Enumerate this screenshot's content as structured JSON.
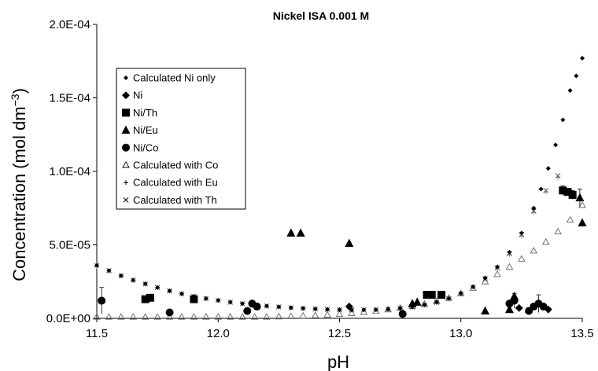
{
  "chart_data": {
    "type": "scatter",
    "title": "Nickel ISA 0.001 M",
    "xlabel": "pH",
    "ylabel": "Concentration (mol dm",
    "ylabel_sup": "−3",
    "ylabel_close": ")",
    "xlim": [
      11.5,
      13.5
    ],
    "ylim": [
      0,
      0.0002
    ],
    "x_ticks": [
      11.5,
      12.0,
      12.5,
      13.0,
      13.5
    ],
    "x_tick_labels": [
      "11.5",
      "12.0",
      "12.5",
      "13.0",
      "13.5"
    ],
    "y_ticks": [
      0,
      5e-05,
      0.0001,
      0.00015,
      0.0002
    ],
    "y_tick_labels": [
      "0.0E+00",
      "5.0E-05",
      "1.0E-04",
      "1.5E-04",
      "2.0E-04"
    ],
    "grid": false,
    "legend_position": "upper-left",
    "series": [
      {
        "name": "Calculated Ni only",
        "marker": "small-diamond",
        "color": "#000000",
        "x": [
          11.5,
          11.55,
          11.6,
          11.65,
          11.7,
          11.75,
          11.8,
          11.85,
          11.9,
          11.95,
          12.0,
          12.05,
          12.1,
          12.15,
          12.2,
          12.25,
          12.3,
          12.35,
          12.4,
          12.45,
          12.5,
          12.55,
          12.6,
          12.65,
          12.7,
          12.75,
          12.8,
          12.85,
          12.9,
          12.95,
          13.0,
          13.05,
          13.1,
          13.15,
          13.2,
          13.25,
          13.3,
          13.33,
          13.36,
          13.39,
          13.42,
          13.45,
          13.475,
          13.5
        ],
        "y": [
          3.6e-05,
          3.25e-05,
          2.9e-05,
          2.6e-05,
          2.35e-05,
          2.1e-05,
          1.87e-05,
          1.67e-05,
          1.5e-05,
          1.35e-05,
          1.22e-05,
          1.1e-05,
          1e-05,
          9.2e-06,
          8.4e-06,
          7.8e-06,
          7.2e-06,
          6.8e-06,
          6.4e-06,
          6.1e-06,
          5.9e-06,
          5.8e-06,
          5.8e-06,
          5.9e-06,
          6.2e-06,
          6.8e-06,
          7.8e-06,
          9.2e-06,
          1.1e-05,
          1.35e-05,
          1.7e-05,
          2.15e-05,
          2.75e-05,
          3.5e-05,
          4.5e-05,
          5.8e-05,
          7.5e-05,
          8.8e-05,
          0.000102,
          0.000118,
          0.000135,
          0.000155,
          0.000165,
          0.000177
        ]
      },
      {
        "name": "Ni",
        "marker": "diamond",
        "color": "#000000",
        "x": [
          12.54,
          13.24,
          13.36
        ],
        "y": [
          8e-06,
          7e-06,
          6e-06
        ]
      },
      {
        "name": "Ni/Th",
        "marker": "square",
        "color": "#000000",
        "x": [
          11.7,
          11.72,
          11.9,
          12.86,
          12.88,
          12.92,
          13.42,
          13.44,
          13.46
        ],
        "y": [
          1.3e-05,
          1.4e-05,
          1.3e-05,
          1.6e-05,
          1.6e-05,
          1.6e-05,
          8.7e-05,
          8.6e-05,
          8.4e-05
        ],
        "error_y": [
          0,
          0,
          0,
          0,
          0,
          0,
          3e-06,
          0,
          3e-06
        ]
      },
      {
        "name": "Ni/Eu",
        "marker": "triangle",
        "color": "#000000",
        "x": [
          12.3,
          12.34,
          12.54,
          12.8,
          12.82,
          13.1,
          13.2,
          13.22,
          13.49,
          13.5
        ],
        "y": [
          5.8e-05,
          5.8e-05,
          5.1e-05,
          1e-05,
          1.1e-05,
          5e-06,
          6e-06,
          1.5e-05,
          8.2e-05,
          6.5e-05
        ],
        "error_y": [
          0,
          0,
          0,
          0,
          0,
          0,
          0,
          0,
          6e-06,
          0
        ]
      },
      {
        "name": "Ni/Co",
        "marker": "circle",
        "color": "#000000",
        "x": [
          11.52,
          11.8,
          12.12,
          12.14,
          12.16,
          12.76,
          13.2,
          13.22,
          13.28,
          13.3,
          13.32,
          13.34
        ],
        "y": [
          1.2e-05,
          4e-06,
          5e-06,
          1e-05,
          8e-06,
          3e-06,
          1e-05,
          1.2e-05,
          5e-06,
          8e-06,
          1e-05,
          8e-06
        ],
        "error_y": [
          9e-06,
          0,
          0,
          0,
          0,
          0,
          0,
          5e-06,
          0,
          0,
          6e-06,
          0
        ]
      },
      {
        "name": "Calculated with Co",
        "marker": "open-triangle",
        "color": "#666666",
        "x": [
          11.5,
          11.55,
          11.6,
          11.65,
          11.7,
          11.75,
          11.8,
          11.85,
          11.9,
          11.95,
          12.0,
          12.05,
          12.1,
          12.15,
          12.2,
          12.25,
          12.3,
          12.35,
          12.4,
          12.45,
          12.5,
          12.55,
          12.6,
          12.65,
          12.7,
          12.75,
          12.8,
          12.85,
          12.9,
          12.95,
          13.0,
          13.05,
          13.1,
          13.15,
          13.2,
          13.25,
          13.3,
          13.35,
          13.4,
          13.45,
          13.5
        ],
        "y": [
          1e-06,
          1e-06,
          1e-06,
          1e-06,
          1e-06,
          1e-06,
          1e-06,
          1e-06,
          1e-06,
          1e-06,
          1e-06,
          1e-06,
          1e-06,
          1e-06,
          1e-06,
          1.2e-06,
          1.4e-06,
          1.7e-06,
          2e-06,
          2.4e-06,
          2.9e-06,
          3.5e-06,
          4.2e-06,
          5e-06,
          6e-06,
          7e-06,
          8.3e-06,
          9.8e-06,
          1.17e-05,
          1.4e-05,
          1.7e-05,
          2.05e-05,
          2.5e-05,
          3e-05,
          3.5e-05,
          4.05e-05,
          4.6e-05,
          5.2e-05,
          5.9e-05,
          6.7e-05,
          7.7e-05
        ]
      },
      {
        "name": "Calculated with Eu",
        "marker": "plus",
        "color": "#888888",
        "x": [
          11.5,
          11.55,
          11.6,
          11.65,
          11.7,
          11.75,
          11.8,
          11.85,
          11.9,
          11.95,
          12.0,
          12.05,
          12.1,
          12.15,
          12.2,
          12.25,
          12.3,
          12.35,
          12.4,
          12.45,
          12.5,
          12.55,
          12.6,
          12.65,
          12.7,
          12.75,
          12.8,
          12.85,
          12.9,
          12.95,
          13.0,
          13.05,
          13.1,
          13.15,
          13.2,
          13.25,
          13.3,
          13.35,
          13.4
        ],
        "y": [
          3.55e-05,
          3.2e-05,
          2.88e-05,
          2.58e-05,
          2.32e-05,
          2.08e-05,
          1.86e-05,
          1.66e-05,
          1.49e-05,
          1.34e-05,
          1.21e-05,
          1.09e-05,
          9.9e-06,
          9.1e-06,
          8.3e-06,
          7.7e-06,
          7.1e-06,
          6.7e-06,
          6.3e-06,
          6e-06,
          5.8e-06,
          5.7e-06,
          5.7e-06,
          5.8e-06,
          6.1e-06,
          6.7e-06,
          7.6e-06,
          9e-06,
          1.08e-05,
          1.32e-05,
          1.65e-05,
          2.1e-05,
          2.68e-05,
          3.4e-05,
          4.35e-05,
          5.6e-05,
          7.2e-05,
          8.6e-05,
          9.6e-05
        ]
      },
      {
        "name": "Calculated with Th",
        "marker": "x",
        "color": "#555555",
        "x": [
          11.5,
          11.55,
          11.6,
          11.65,
          11.7,
          11.75,
          11.8,
          11.85,
          11.9,
          11.95,
          12.0,
          12.05,
          12.1,
          12.15,
          12.2,
          12.25,
          12.3,
          12.35,
          12.4,
          12.45,
          12.5,
          12.55,
          12.6,
          12.65,
          12.7,
          12.75,
          12.8,
          12.85,
          12.9,
          12.95,
          13.0,
          13.05,
          13.1,
          13.15,
          13.2,
          13.25,
          13.3,
          13.35,
          13.4
        ],
        "y": [
          3.6e-05,
          3.24e-05,
          2.9e-05,
          2.6e-05,
          2.34e-05,
          2.1e-05,
          1.87e-05,
          1.67e-05,
          1.5e-05,
          1.35e-05,
          1.22e-05,
          1.1e-05,
          1e-05,
          9.2e-06,
          8.4e-06,
          7.8e-06,
          7.2e-06,
          6.8e-06,
          6.4e-06,
          6.1e-06,
          5.9e-06,
          5.8e-06,
          5.8e-06,
          5.9e-06,
          6.2e-06,
          6.8e-06,
          7.7e-06,
          9.1e-06,
          1.09e-05,
          1.33e-05,
          1.66e-05,
          2.12e-05,
          2.7e-05,
          3.42e-05,
          4.4e-05,
          5.7e-05,
          7.3e-05,
          8.7e-05,
          9.7e-05
        ]
      }
    ]
  }
}
